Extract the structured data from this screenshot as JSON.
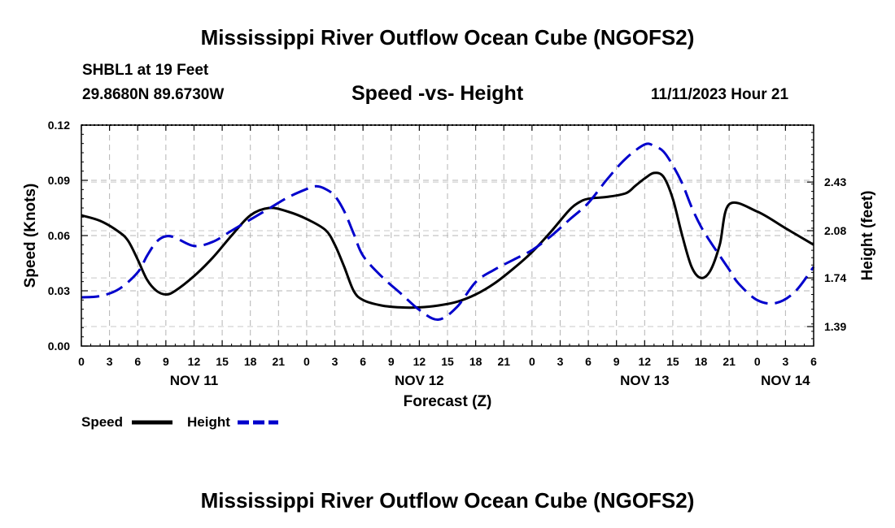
{
  "page": {
    "title_top": "Mississippi River Outflow Ocean Cube (NGOFS2)",
    "title_bottom": "Mississippi River Outflow Ocean Cube (NGOFS2)",
    "station": "SHBL1 at 19 Feet",
    "coords": "29.8680N  89.6730W",
    "datetime": "11/11/2023 Hour 21"
  },
  "chart_data": {
    "type": "line",
    "title": "Speed -vs- Height",
    "xlabel": "Forecast (Z)",
    "ylabel": "Speed (Knots)",
    "y2label": "Height (feet)",
    "x_unit": "hours since NOV 11 00Z",
    "xlim": [
      0,
      78
    ],
    "ylim": [
      0,
      0.12
    ],
    "y2lim": [
      1.25,
      2.84
    ],
    "x_ticks": [
      {
        "x": 0,
        "label": "0"
      },
      {
        "x": 3,
        "label": "3"
      },
      {
        "x": 6,
        "label": "6"
      },
      {
        "x": 9,
        "label": "9"
      },
      {
        "x": 12,
        "label": "12"
      },
      {
        "x": 15,
        "label": "15"
      },
      {
        "x": 18,
        "label": "18"
      },
      {
        "x": 21,
        "label": "21"
      },
      {
        "x": 24,
        "label": "0"
      },
      {
        "x": 27,
        "label": "3"
      },
      {
        "x": 30,
        "label": "6"
      },
      {
        "x": 33,
        "label": "9"
      },
      {
        "x": 36,
        "label": "12"
      },
      {
        "x": 39,
        "label": "15"
      },
      {
        "x": 42,
        "label": "18"
      },
      {
        "x": 45,
        "label": "21"
      },
      {
        "x": 48,
        "label": "0"
      },
      {
        "x": 51,
        "label": "3"
      },
      {
        "x": 54,
        "label": "6"
      },
      {
        "x": 57,
        "label": "9"
      },
      {
        "x": 60,
        "label": "12"
      },
      {
        "x": 63,
        "label": "15"
      },
      {
        "x": 66,
        "label": "18"
      },
      {
        "x": 69,
        "label": "21"
      },
      {
        "x": 72,
        "label": "0"
      },
      {
        "x": 75,
        "label": "3"
      },
      {
        "x": 78,
        "label": "6"
      }
    ],
    "day_labels": [
      {
        "x": 12,
        "label": "NOV 11"
      },
      {
        "x": 36,
        "label": "NOV 12"
      },
      {
        "x": 60,
        "label": "NOV 13"
      },
      {
        "x": 75,
        "label": "NOV 14"
      }
    ],
    "y_ticks": [
      {
        "v": 0.0,
        "label": "0.00"
      },
      {
        "v": 0.03,
        "label": "0.03"
      },
      {
        "v": 0.06,
        "label": "0.06"
      },
      {
        "v": 0.09,
        "label": "0.09"
      },
      {
        "v": 0.12,
        "label": "0.12"
      }
    ],
    "y2_ticks": [
      {
        "v": 1.39,
        "label": "1.39"
      },
      {
        "v": 1.74,
        "label": "1.74"
      },
      {
        "v": 2.08,
        "label": "2.08"
      },
      {
        "v": 2.43,
        "label": "2.43"
      }
    ],
    "grid": true,
    "legend_position": "bottom-left",
    "series": [
      {
        "name": "Speed",
        "axis": "left",
        "color": "#000000",
        "dash": "solid",
        "x": [
          0,
          2,
          4,
          5,
          6,
          7,
          8,
          9,
          10,
          12,
          14,
          16,
          18,
          20,
          22,
          24,
          26,
          27,
          28,
          29,
          30,
          32,
          34,
          36,
          38,
          40,
          42,
          44,
          46,
          48,
          50,
          52,
          53,
          54,
          56,
          58,
          59,
          60,
          61,
          62,
          63,
          64,
          65,
          66,
          67,
          68,
          69,
          72,
          75,
          78
        ],
        "y": [
          0.071,
          0.068,
          0.062,
          0.057,
          0.047,
          0.036,
          0.03,
          0.028,
          0.03,
          0.038,
          0.048,
          0.06,
          0.071,
          0.075,
          0.073,
          0.069,
          0.063,
          0.055,
          0.043,
          0.03,
          0.025,
          0.022,
          0.021,
          0.021,
          0.022,
          0.024,
          0.028,
          0.034,
          0.042,
          0.051,
          0.062,
          0.074,
          0.078,
          0.08,
          0.081,
          0.083,
          0.087,
          0.091,
          0.094,
          0.092,
          0.08,
          0.06,
          0.043,
          0.037,
          0.041,
          0.055,
          0.077,
          0.073,
          0.064,
          0.055
        ]
      },
      {
        "name": "Height",
        "axis": "right",
        "color": "#0000cc",
        "dash": "dashed",
        "x": [
          0,
          2,
          4,
          6,
          7,
          8,
          9,
          10,
          12,
          14,
          16,
          18,
          20,
          22,
          24,
          25,
          26,
          27,
          28,
          29,
          30,
          32,
          34,
          36,
          38,
          40,
          42,
          44,
          46,
          48,
          50,
          52,
          54,
          56,
          58,
          60,
          61,
          62,
          63,
          64,
          65,
          66,
          67,
          68,
          69,
          70,
          72,
          74,
          76,
          78
        ],
        "y": [
          1.6,
          1.61,
          1.66,
          1.78,
          1.9,
          2.0,
          2.04,
          2.03,
          1.97,
          2.0,
          2.08,
          2.16,
          2.24,
          2.32,
          2.38,
          2.4,
          2.38,
          2.33,
          2.22,
          2.06,
          1.9,
          1.75,
          1.63,
          1.51,
          1.44,
          1.53,
          1.71,
          1.8,
          1.87,
          1.94,
          2.04,
          2.16,
          2.28,
          2.45,
          2.6,
          2.7,
          2.69,
          2.65,
          2.55,
          2.42,
          2.25,
          2.11,
          2.0,
          1.9,
          1.8,
          1.7,
          1.58,
          1.56,
          1.64,
          1.82
        ]
      }
    ]
  }
}
